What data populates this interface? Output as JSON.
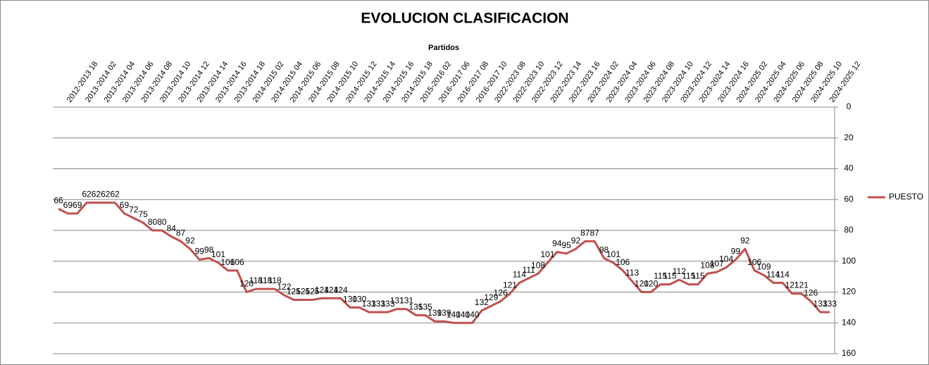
{
  "chart_data": {
    "type": "line",
    "title": "EVOLUCION CLASIFICACION",
    "x_axis_label": "Partidos",
    "x_labels": [
      "2012-2013 18",
      "2013-2014 02",
      "2013-2014 04",
      "2013-2014 06",
      "2013-2014 08",
      "2013-2014 10",
      "2013-2014 12",
      "2013-2014 14",
      "2013-2014 16",
      "2013-2014 18",
      "2014-2015 02",
      "2014-2015 04",
      "2014-2015 06",
      "2014-2015 08",
      "2014-2015 10",
      "2014-2015 12",
      "2014-2015 14",
      "2014-2015 16",
      "2014-2015 18",
      "2015-2016 02",
      "2016-2017 06",
      "2016-2017 08",
      "2016-2017 10",
      "2022-2023 08",
      "2022-2023 10",
      "2022-2023 12",
      "2022-2023 14",
      "2022-2023 16",
      "2023-2024 02",
      "2023-2024 04",
      "2023-2024 06",
      "2023-2024 08",
      "2023-2024 10",
      "2023-2024 12",
      "2023-2024 14",
      "2023-2024 16",
      "2024-2025 02",
      "2024-2025 04",
      "2024-2025 06",
      "2024-2025 08",
      "2024-2025 10",
      "2024-2025 12"
    ],
    "series": [
      {
        "name": "PUESTO",
        "color": "#c0504d",
        "values": [
          66,
          69,
          69,
          62,
          62,
          62,
          62,
          69,
          72,
          75,
          80,
          80,
          84,
          87,
          92,
          99,
          98,
          101,
          106,
          106,
          120,
          118,
          118,
          118,
          122,
          125,
          125,
          125,
          124,
          124,
          124,
          130,
          130,
          133,
          133,
          133,
          131,
          131,
          135,
          135,
          139,
          139,
          140,
          140,
          140,
          132,
          129,
          126,
          121,
          114,
          111,
          108,
          101,
          94,
          95,
          92,
          87,
          87,
          98,
          101,
          106,
          113,
          120,
          120,
          115,
          115,
          112,
          115,
          115,
          108,
          107,
          104,
          99,
          92,
          106,
          109,
          114,
          114,
          121,
          121,
          126,
          133,
          133
        ]
      }
    ],
    "ylim": [
      0,
      160
    ],
    "yticks": [
      0,
      20,
      40,
      60,
      80,
      100,
      120,
      140,
      160
    ],
    "y_reversed": true,
    "grid": true,
    "legend": "right"
  }
}
